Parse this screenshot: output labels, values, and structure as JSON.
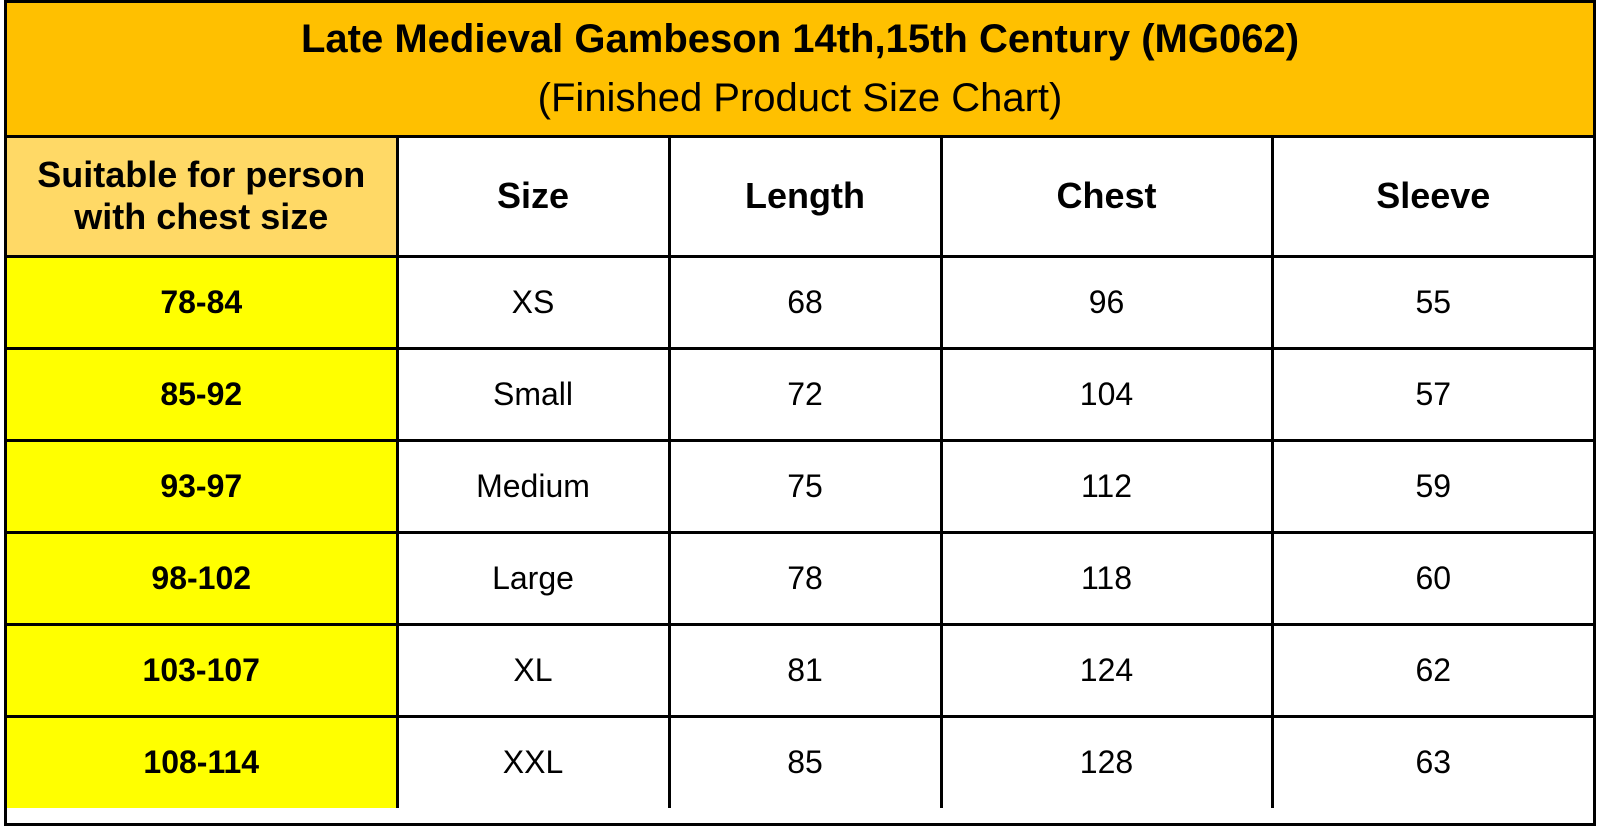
{
  "title": "Late Medieval Gambeson 14th,15th Century (MG062)",
  "subtitle": "(Finished Product Size Chart)",
  "colors": {
    "title_background": "#ffc000",
    "first_column_header_background": "#ffd966",
    "first_column_background": "#ffff00",
    "border": "#000000"
  },
  "table": {
    "headers": {
      "suitable_line1": "Suitable for person",
      "suitable_line2": "with chest size",
      "size": "Size",
      "length": "Length",
      "chest": "Chest",
      "sleeve": "Sleeve"
    },
    "rows": [
      {
        "suitable": "78-84",
        "size": "XS",
        "length": "68",
        "chest": "96",
        "sleeve": "55"
      },
      {
        "suitable": "85-92",
        "size": "Small",
        "length": "72",
        "chest": "104",
        "sleeve": "57"
      },
      {
        "suitable": "93-97",
        "size": "Medium",
        "length": "75",
        "chest": "112",
        "sleeve": "59"
      },
      {
        "suitable": "98-102",
        "size": "Large",
        "length": "78",
        "chest": "118",
        "sleeve": "60"
      },
      {
        "suitable": "103-107",
        "size": "XL",
        "length": "81",
        "chest": "124",
        "sleeve": "62"
      },
      {
        "suitable": "108-114",
        "size": "XXL",
        "length": "85",
        "chest": "128",
        "sleeve": "63"
      }
    ]
  }
}
